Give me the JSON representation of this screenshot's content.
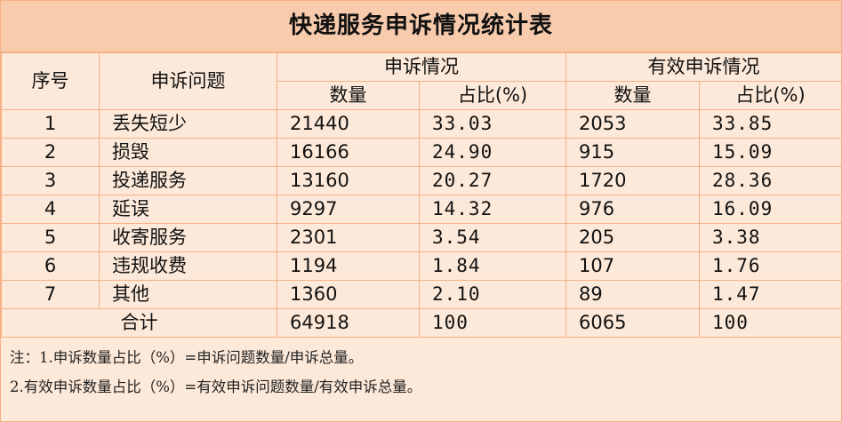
{
  "title": "快递服务申诉情况统计表",
  "headers": {
    "seq": "序号",
    "issue": "申诉问题",
    "complaints": "申诉情况",
    "valid_complaints": "有效申诉情况",
    "count": "数量",
    "ratio": "占比(%)",
    "valid_count": "数量",
    "valid_ratio": "占比(%)"
  },
  "rows": [
    {
      "seq": "1",
      "issue": "丢失短少",
      "count": "21440",
      "ratio": "33.03",
      "valid_count": "2053",
      "valid_ratio": "33.85"
    },
    {
      "seq": "2",
      "issue": "损毁",
      "count": "16166",
      "ratio": "24.90",
      "valid_count": "915",
      "valid_ratio": "15.09"
    },
    {
      "seq": "3",
      "issue": "投递服务",
      "count": "13160",
      "ratio": "20.27",
      "valid_count": "1720",
      "valid_ratio": "28.36"
    },
    {
      "seq": "4",
      "issue": "延误",
      "count": "9297",
      "ratio": "14.32",
      "valid_count": "976",
      "valid_ratio": "16.09"
    },
    {
      "seq": "5",
      "issue": "收寄服务",
      "count": "2301",
      "ratio": "3.54",
      "valid_count": "205",
      "valid_ratio": "3.38"
    },
    {
      "seq": "6",
      "issue": "违规收费",
      "count": "1194",
      "ratio": "1.84",
      "valid_count": "107",
      "valid_ratio": "1.76"
    },
    {
      "seq": "7",
      "issue": "其他",
      "count": "1360",
      "ratio": "2.10",
      "valid_count": "89",
      "valid_ratio": "1.47"
    }
  ],
  "total": {
    "label": "合计",
    "count": "64918",
    "ratio": "100",
    "valid_count": "6065",
    "valid_ratio": "100"
  },
  "notes": [
    "注：1.申诉数量占比（%）=申诉问题数量/申诉总量。",
    "2.有效申诉数量占比（%）=有效申诉问题数量/有效申诉总量。"
  ],
  "colors": {
    "background": "#fde9d9",
    "title_band": "#f8cbad",
    "border": "#f4b183"
  }
}
